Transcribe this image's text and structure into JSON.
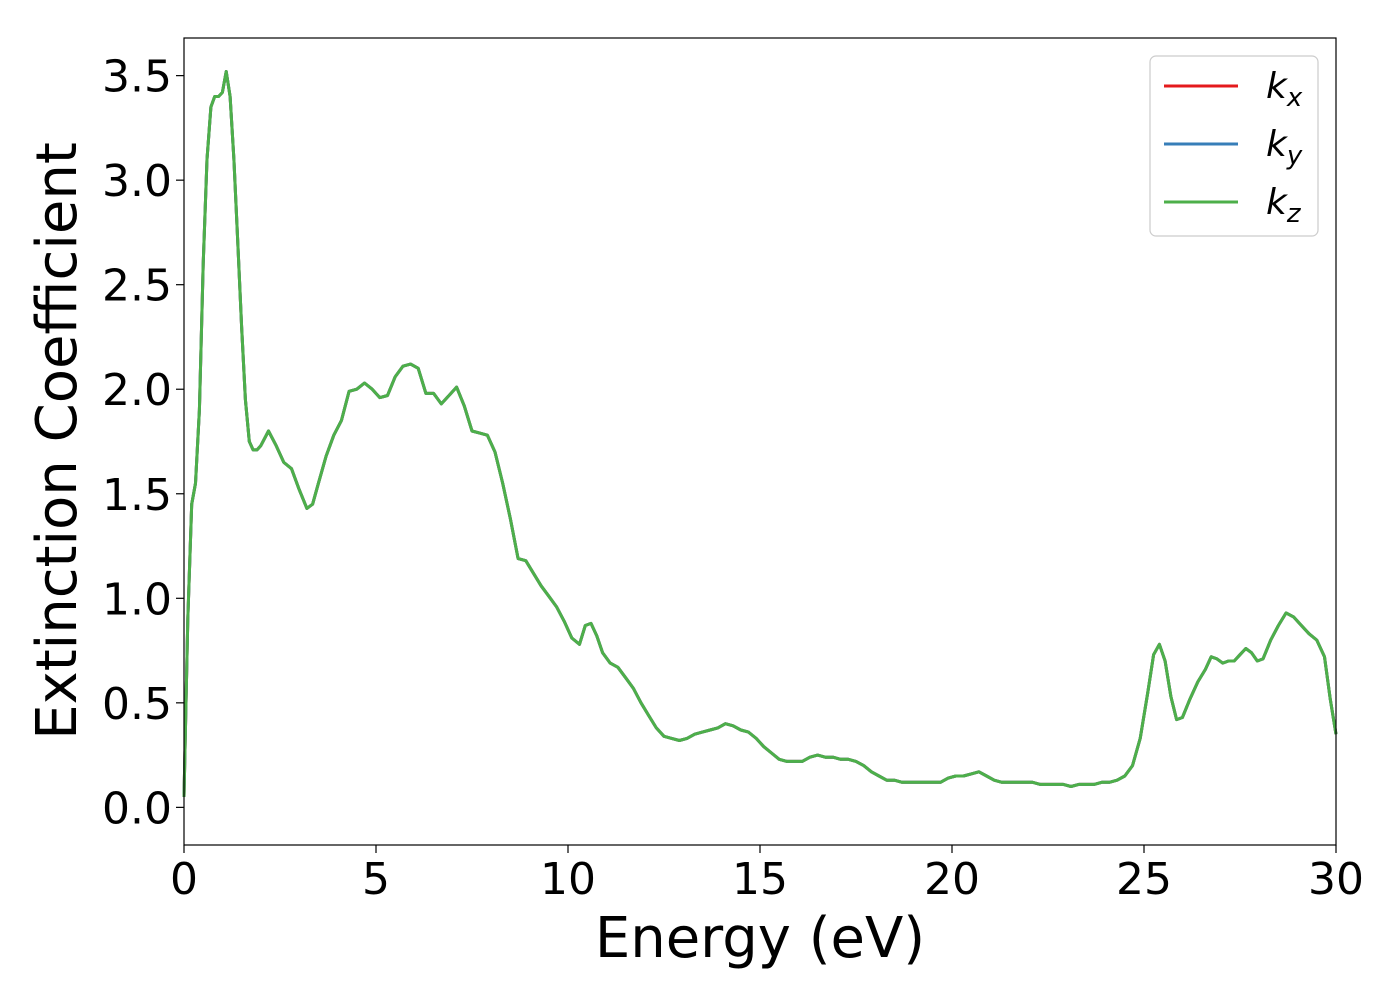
{
  "chart_data": {
    "type": "line",
    "title": "",
    "xlabel": "Energy (eV)",
    "ylabel": "Extinction Coefficient",
    "xlim": [
      0,
      30
    ],
    "ylim": [
      -0.18,
      3.68
    ],
    "x_ticks": [
      0,
      5,
      10,
      15,
      20,
      25,
      30
    ],
    "x_tick_labels": [
      "0",
      "5",
      "10",
      "15",
      "20",
      "25",
      "30"
    ],
    "y_ticks": [
      0.0,
      0.5,
      1.0,
      1.5,
      2.0,
      2.5,
      3.0,
      3.5
    ],
    "y_tick_labels": [
      "0.0",
      "0.5",
      "1.0",
      "1.5",
      "2.0",
      "2.5",
      "3.0",
      "3.5"
    ],
    "grid": false,
    "legend_position": "top-right",
    "x": [
      0,
      0.1,
      0.2,
      0.3,
      0.4,
      0.5,
      0.6,
      0.7,
      0.8,
      0.9,
      1.0,
      1.1,
      1.2,
      1.3,
      1.4,
      1.5,
      1.6,
      1.7,
      1.8,
      1.9,
      2.0,
      2.2,
      2.4,
      2.6,
      2.8,
      3.0,
      3.2,
      3.35,
      3.5,
      3.7,
      3.9,
      4.1,
      4.3,
      4.5,
      4.7,
      4.9,
      5.1,
      5.3,
      5.5,
      5.7,
      5.9,
      6.1,
      6.3,
      6.5,
      6.7,
      6.9,
      7.1,
      7.3,
      7.5,
      7.7,
      7.9,
      8.1,
      8.3,
      8.5,
      8.7,
      8.9,
      9.1,
      9.3,
      9.5,
      9.7,
      9.9,
      10.1,
      10.3,
      10.45,
      10.6,
      10.75,
      10.9,
      11.1,
      11.3,
      11.5,
      11.7,
      11.9,
      12.1,
      12.3,
      12.5,
      12.7,
      12.9,
      13.1,
      13.3,
      13.5,
      13.7,
      13.9,
      14.1,
      14.3,
      14.5,
      14.7,
      14.9,
      15.1,
      15.3,
      15.5,
      15.7,
      15.9,
      16.1,
      16.3,
      16.5,
      16.7,
      16.9,
      17.1,
      17.3,
      17.5,
      17.7,
      17.9,
      18.1,
      18.3,
      18.5,
      18.7,
      18.9,
      19.1,
      19.3,
      19.5,
      19.7,
      19.9,
      20.1,
      20.3,
      20.5,
      20.7,
      20.9,
      21.1,
      21.3,
      21.5,
      21.7,
      21.9,
      22.1,
      22.3,
      22.5,
      22.7,
      22.9,
      23.1,
      23.3,
      23.5,
      23.7,
      23.9,
      24.1,
      24.3,
      24.5,
      24.7,
      24.9,
      25.1,
      25.25,
      25.4,
      25.55,
      25.7,
      25.85,
      26.0,
      26.2,
      26.4,
      26.6,
      26.75,
      26.9,
      27.05,
      27.2,
      27.35,
      27.5,
      27.65,
      27.8,
      27.95,
      28.1,
      28.3,
      28.5,
      28.7,
      28.9,
      29.1,
      29.3,
      29.5,
      29.7,
      29.85,
      30.0
    ],
    "series": [
      {
        "name": "k_x",
        "color": "#e41a1c",
        "values": [
          0.05,
          0.9,
          1.45,
          1.55,
          1.9,
          2.6,
          3.1,
          3.35,
          3.4,
          3.4,
          3.42,
          3.52,
          3.4,
          3.1,
          2.7,
          2.3,
          1.95,
          1.75,
          1.71,
          1.71,
          1.73,
          1.8,
          1.73,
          1.65,
          1.62,
          1.52,
          1.43,
          1.45,
          1.55,
          1.68,
          1.78,
          1.85,
          1.99,
          2.0,
          2.03,
          2.0,
          1.96,
          1.97,
          2.06,
          2.11,
          2.12,
          2.1,
          1.98,
          1.98,
          1.93,
          1.97,
          2.01,
          1.92,
          1.8,
          1.79,
          1.78,
          1.7,
          1.55,
          1.38,
          1.19,
          1.18,
          1.12,
          1.06,
          1.01,
          0.96,
          0.89,
          0.81,
          0.78,
          0.87,
          0.88,
          0.82,
          0.74,
          0.69,
          0.67,
          0.62,
          0.57,
          0.5,
          0.44,
          0.38,
          0.34,
          0.33,
          0.32,
          0.33,
          0.35,
          0.36,
          0.37,
          0.38,
          0.4,
          0.39,
          0.37,
          0.36,
          0.33,
          0.29,
          0.26,
          0.23,
          0.22,
          0.22,
          0.22,
          0.24,
          0.25,
          0.24,
          0.24,
          0.23,
          0.23,
          0.22,
          0.2,
          0.17,
          0.15,
          0.13,
          0.13,
          0.12,
          0.12,
          0.12,
          0.12,
          0.12,
          0.12,
          0.14,
          0.15,
          0.15,
          0.16,
          0.17,
          0.15,
          0.13,
          0.12,
          0.12,
          0.12,
          0.12,
          0.12,
          0.11,
          0.11,
          0.11,
          0.11,
          0.1,
          0.11,
          0.11,
          0.11,
          0.12,
          0.12,
          0.13,
          0.15,
          0.2,
          0.33,
          0.55,
          0.73,
          0.78,
          0.7,
          0.53,
          0.42,
          0.43,
          0.52,
          0.6,
          0.66,
          0.72,
          0.71,
          0.69,
          0.7,
          0.7,
          0.73,
          0.76,
          0.74,
          0.7,
          0.71,
          0.8,
          0.87,
          0.93,
          0.91,
          0.87,
          0.83,
          0.8,
          0.72,
          0.52,
          0.35
        ]
      },
      {
        "name": "k_y",
        "color": "#377eb8",
        "values": [
          0.05,
          0.9,
          1.45,
          1.55,
          1.9,
          2.6,
          3.1,
          3.35,
          3.4,
          3.4,
          3.42,
          3.52,
          3.4,
          3.1,
          2.7,
          2.3,
          1.95,
          1.75,
          1.71,
          1.71,
          1.73,
          1.8,
          1.73,
          1.65,
          1.62,
          1.52,
          1.43,
          1.45,
          1.55,
          1.68,
          1.78,
          1.85,
          1.99,
          2.0,
          2.03,
          2.0,
          1.96,
          1.97,
          2.06,
          2.11,
          2.12,
          2.1,
          1.98,
          1.98,
          1.93,
          1.97,
          2.01,
          1.92,
          1.8,
          1.79,
          1.78,
          1.7,
          1.55,
          1.38,
          1.19,
          1.18,
          1.12,
          1.06,
          1.01,
          0.96,
          0.89,
          0.81,
          0.78,
          0.87,
          0.88,
          0.82,
          0.74,
          0.69,
          0.67,
          0.62,
          0.57,
          0.5,
          0.44,
          0.38,
          0.34,
          0.33,
          0.32,
          0.33,
          0.35,
          0.36,
          0.37,
          0.38,
          0.4,
          0.39,
          0.37,
          0.36,
          0.33,
          0.29,
          0.26,
          0.23,
          0.22,
          0.22,
          0.22,
          0.24,
          0.25,
          0.24,
          0.24,
          0.23,
          0.23,
          0.22,
          0.2,
          0.17,
          0.15,
          0.13,
          0.13,
          0.12,
          0.12,
          0.12,
          0.12,
          0.12,
          0.12,
          0.14,
          0.15,
          0.15,
          0.16,
          0.17,
          0.15,
          0.13,
          0.12,
          0.12,
          0.12,
          0.12,
          0.12,
          0.11,
          0.11,
          0.11,
          0.11,
          0.1,
          0.11,
          0.11,
          0.11,
          0.12,
          0.12,
          0.13,
          0.15,
          0.2,
          0.33,
          0.55,
          0.73,
          0.78,
          0.7,
          0.53,
          0.42,
          0.43,
          0.52,
          0.6,
          0.66,
          0.72,
          0.71,
          0.69,
          0.7,
          0.7,
          0.73,
          0.76,
          0.74,
          0.7,
          0.71,
          0.8,
          0.87,
          0.93,
          0.91,
          0.87,
          0.83,
          0.8,
          0.72,
          0.52,
          0.35
        ]
      },
      {
        "name": "k_z",
        "color": "#4daf4a",
        "values": [
          0.05,
          0.9,
          1.45,
          1.55,
          1.9,
          2.6,
          3.1,
          3.35,
          3.4,
          3.4,
          3.42,
          3.52,
          3.4,
          3.1,
          2.7,
          2.3,
          1.95,
          1.75,
          1.71,
          1.71,
          1.73,
          1.8,
          1.73,
          1.65,
          1.62,
          1.52,
          1.43,
          1.45,
          1.55,
          1.68,
          1.78,
          1.85,
          1.99,
          2.0,
          2.03,
          2.0,
          1.96,
          1.97,
          2.06,
          2.11,
          2.12,
          2.1,
          1.98,
          1.98,
          1.93,
          1.97,
          2.01,
          1.92,
          1.8,
          1.79,
          1.78,
          1.7,
          1.55,
          1.38,
          1.19,
          1.18,
          1.12,
          1.06,
          1.01,
          0.96,
          0.89,
          0.81,
          0.78,
          0.87,
          0.88,
          0.82,
          0.74,
          0.69,
          0.67,
          0.62,
          0.57,
          0.5,
          0.44,
          0.38,
          0.34,
          0.33,
          0.32,
          0.33,
          0.35,
          0.36,
          0.37,
          0.38,
          0.4,
          0.39,
          0.37,
          0.36,
          0.33,
          0.29,
          0.26,
          0.23,
          0.22,
          0.22,
          0.22,
          0.24,
          0.25,
          0.24,
          0.24,
          0.23,
          0.23,
          0.22,
          0.2,
          0.17,
          0.15,
          0.13,
          0.13,
          0.12,
          0.12,
          0.12,
          0.12,
          0.12,
          0.12,
          0.14,
          0.15,
          0.15,
          0.16,
          0.17,
          0.15,
          0.13,
          0.12,
          0.12,
          0.12,
          0.12,
          0.12,
          0.11,
          0.11,
          0.11,
          0.11,
          0.1,
          0.11,
          0.11,
          0.11,
          0.12,
          0.12,
          0.13,
          0.15,
          0.2,
          0.33,
          0.55,
          0.73,
          0.78,
          0.7,
          0.53,
          0.42,
          0.43,
          0.52,
          0.6,
          0.66,
          0.72,
          0.71,
          0.69,
          0.7,
          0.7,
          0.73,
          0.76,
          0.74,
          0.7,
          0.71,
          0.8,
          0.87,
          0.93,
          0.91,
          0.87,
          0.83,
          0.8,
          0.72,
          0.52,
          0.35
        ]
      }
    ],
    "legend": [
      {
        "base": "k",
        "sub": "x"
      },
      {
        "base": "k",
        "sub": "y"
      },
      {
        "base": "k",
        "sub": "z"
      }
    ]
  }
}
